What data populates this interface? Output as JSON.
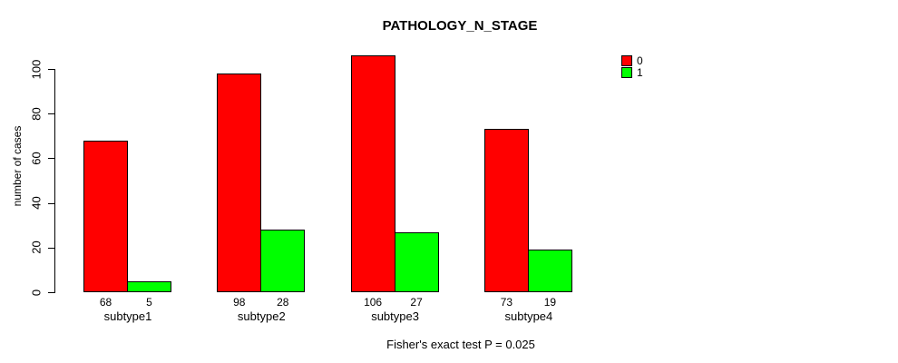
{
  "title": "PATHOLOGY_N_STAGE",
  "y_axis": {
    "label": "number of cases",
    "tick_labels": [
      "0",
      "20",
      "40",
      "60",
      "80",
      "100"
    ]
  },
  "footer": "Fisher's exact test P = 0.025",
  "legend": {
    "items": [
      {
        "label": "0",
        "color": "#ff0000"
      },
      {
        "label": "1",
        "color": "#00ff00"
      }
    ]
  },
  "chart_data": {
    "type": "bar",
    "title": "PATHOLOGY_N_STAGE",
    "categories": [
      "subtype1",
      "subtype2",
      "subtype3",
      "subtype4"
    ],
    "series": [
      {
        "name": "0",
        "color": "#ff0000",
        "values": [
          68,
          98,
          106,
          73
        ]
      },
      {
        "name": "1",
        "color": "#00ff00",
        "values": [
          5,
          28,
          27,
          19
        ]
      }
    ],
    "show_bar_value_labels": true,
    "xlabel": "",
    "ylabel": "number of cases",
    "yticks": [
      0,
      20,
      40,
      60,
      80,
      100
    ],
    "ylim": [
      0,
      110
    ],
    "grid": false,
    "legend_position": "top-right",
    "annotation": "Fisher's exact test P = 0.025"
  }
}
